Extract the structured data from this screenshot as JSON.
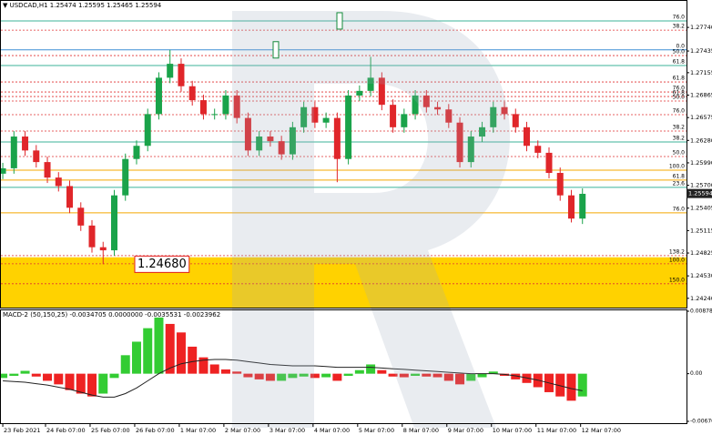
{
  "chart_data": [
    {
      "type": "candlestick",
      "title": "▼ USDCAD,H1  1.25474 1.25595 1.25465 1.25594",
      "xlim": [
        -1.5,
        368
      ],
      "ylim": [
        1.2412,
        1.28
      ],
      "yticks": [
        {
          "value": 1.2774,
          "label": "1.27740"
        },
        1.27435,
        1.27155,
        1.26865,
        1.26575,
        {
          "value": 1.2628,
          "label": "1.26280"
        },
        {
          "value": 1.2599,
          "label": "1.25990"
        },
        {
          "value": 1.257,
          "label": "1.25700"
        },
        1.25405,
        1.25115,
        1.24825,
        {
          "value": 1.2453,
          "label": "1.24530"
        },
        {
          "value": 1.2424,
          "label": "1.24240"
        }
      ],
      "up_color": "#1aa34a",
      "down_color": "#e0262a",
      "x": [
        0,
        6,
        12,
        18,
        24,
        30,
        36,
        42,
        48,
        54,
        60,
        66,
        72,
        78,
        84,
        90,
        96,
        102,
        108,
        114,
        120,
        126,
        132,
        138,
        144,
        150,
        156,
        162,
        168,
        174,
        180,
        186,
        192,
        198,
        204,
        210,
        216,
        222,
        228,
        234,
        240,
        246,
        252,
        258,
        264,
        270,
        276,
        282,
        288,
        294,
        300,
        306,
        312
      ],
      "open": [
        1.2585,
        1.2592,
        1.2633,
        1.2615,
        1.26,
        1.258,
        1.2569,
        1.2541,
        1.2518,
        1.249,
        1.2486,
        1.2557,
        1.2604,
        1.2621,
        1.2662,
        1.2709,
        1.2727,
        1.2698,
        1.268,
        1.2662,
        1.2662,
        1.2686,
        1.2657,
        1.2615,
        1.2633,
        1.2627,
        1.261,
        1.2645,
        1.2671,
        1.2651,
        1.2657,
        1.2604,
        1.2686,
        1.2692,
        1.2709,
        1.2674,
        1.2645,
        1.2662,
        1.2686,
        1.2671,
        1.2668,
        1.2651,
        1.26,
        1.2633,
        1.2645,
        1.2671,
        1.2662,
        1.2645,
        1.2621,
        1.2612,
        1.2586,
        1.2557,
        1.2527
      ],
      "high": [
        1.2599,
        1.264,
        1.264,
        1.2622,
        1.2607,
        1.2587,
        1.2576,
        1.2548,
        1.2525,
        1.2497,
        1.2564,
        1.2611,
        1.2628,
        1.2669,
        1.2716,
        1.2745,
        1.2734,
        1.2705,
        1.2687,
        1.2669,
        1.2693,
        1.2693,
        1.2664,
        1.264,
        1.264,
        1.2634,
        1.2652,
        1.2678,
        1.2678,
        1.2664,
        1.2664,
        1.2693,
        1.2699,
        1.2736,
        1.2716,
        1.2681,
        1.2669,
        1.2693,
        1.2693,
        1.2678,
        1.2675,
        1.2658,
        1.264,
        1.2652,
        1.2678,
        1.2678,
        1.2669,
        1.2652,
        1.2628,
        1.2619,
        1.2593,
        1.2564,
        1.2566
      ],
      "low": [
        1.2578,
        1.2585,
        1.2608,
        1.2593,
        1.2573,
        1.2562,
        1.2534,
        1.2511,
        1.2483,
        1.2468,
        1.2479,
        1.255,
        1.2597,
        1.2614,
        1.2655,
        1.2702,
        1.2691,
        1.2673,
        1.2655,
        1.2655,
        1.2655,
        1.265,
        1.2608,
        1.2608,
        1.262,
        1.2603,
        1.2603,
        1.2638,
        1.2644,
        1.2644,
        1.2574,
        1.2597,
        1.2679,
        1.2685,
        1.2667,
        1.2638,
        1.2638,
        1.2655,
        1.2664,
        1.2661,
        1.2644,
        1.2593,
        1.2593,
        1.2626,
        1.2638,
        1.2655,
        1.2638,
        1.2614,
        1.2605,
        1.2579,
        1.255,
        1.2522,
        1.252
      ],
      "close": [
        1.2592,
        1.2633,
        1.2615,
        1.26,
        1.258,
        1.2569,
        1.2541,
        1.2518,
        1.249,
        1.2486,
        1.2557,
        1.2604,
        1.2621,
        1.2662,
        1.2709,
        1.2727,
        1.2698,
        1.268,
        1.2662,
        1.2662,
        1.2686,
        1.2657,
        1.2615,
        1.2633,
        1.2627,
        1.261,
        1.2645,
        1.2671,
        1.2651,
        1.2657,
        1.2604,
        1.2686,
        1.2692,
        1.2709,
        1.2674,
        1.2645,
        1.2662,
        1.2686,
        1.2671,
        1.2668,
        1.2651,
        1.26,
        1.2633,
        1.2645,
        1.2671,
        1.2662,
        1.2645,
        1.2621,
        1.2612,
        1.2586,
        1.2557,
        1.2527,
        1.2559
      ],
      "zone": {
        "from": 1.2412,
        "to": 1.2477,
        "color": "#ffd200"
      },
      "levels": [
        {
          "label": "76.0",
          "value": 1.27824,
          "color": "#3cb39a",
          "style": "solid"
        },
        {
          "label": "38.2",
          "value": 1.27705,
          "color": "#e03030",
          "style": "dotted"
        },
        {
          "label": "0.0",
          "value": 1.2745,
          "color": "#3d8fd6",
          "style": "solid"
        },
        {
          "label": "50.0",
          "value": 1.27376,
          "color": "#e03030",
          "style": "dotted"
        },
        {
          "label": "61.8",
          "value": 1.27247,
          "color": "#3cb39a",
          "style": "solid"
        },
        {
          "label": "61.8",
          "value": 1.27035,
          "color": "#e03030",
          "style": "dotted"
        },
        {
          "label": "76.0",
          "value": 1.26906,
          "color": "#e03030",
          "style": "dotted"
        },
        {
          "label": "61.8",
          "value": 1.26847,
          "color": "#e03030",
          "style": "dotted"
        },
        {
          "label": "50.0",
          "value": 1.26789,
          "color": "#e03030",
          "style": "dotted"
        },
        {
          "label": "76.0",
          "value": 1.26613,
          "color": "#e03030",
          "style": "dotted"
        },
        {
          "label": "38.2",
          "value": 1.26401,
          "color": "#e03030",
          "style": "dotted"
        },
        {
          "label": "38.2",
          "value": 1.2626,
          "color": "#3cb39a",
          "style": "solid"
        },
        {
          "label": "50.0",
          "value": 1.26072,
          "color": "#e03030",
          "style": "dotted"
        },
        {
          "label": "100.0",
          "value": 1.25896,
          "color": "#f5a800",
          "style": "solid"
        },
        {
          "label": "61.8",
          "value": 1.25767,
          "color": "#f5a800",
          "style": "solid"
        },
        {
          "label": "23.6",
          "value": 1.25673,
          "color": "#3cb39a",
          "style": "solid"
        },
        {
          "label": "76.0",
          "value": 1.25344,
          "color": "#f5a800",
          "style": "solid"
        },
        {
          "label": "138.2",
          "value": 1.24792,
          "color": "#e03030",
          "style": "dotted"
        },
        {
          "label": "100.0",
          "value": 1.24686,
          "color": "#e03030",
          "style": "dotted"
        },
        {
          "label": "150.0",
          "value": 1.24428,
          "color": "#e03030",
          "style": "dotted"
        }
      ],
      "targets": [
        {
          "value": 1.27824
        },
        {
          "value": 1.2745
        },
        {
          "value": 1.2468,
          "label": "1.24680"
        }
      ],
      "last_price": 1.25594
    },
    {
      "type": "macd",
      "title": "MACD-2 (50,150,25) -0.0034705 0.0000000 -0.0035531 -0.0023962",
      "xlim": [
        -1.5,
        368
      ],
      "ylim": [
        -0.006701,
        0.0087837
      ],
      "yticks": [
        0.0087837,
        {
          "value": 0,
          "label": "0.00"
        },
        -0.006701
      ],
      "xticks": [
        {
          "value": 0,
          "label": "23 Feb 2021"
        },
        {
          "value": 23,
          "label": "24 Feb 07:00"
        },
        {
          "value": 47,
          "label": "25 Feb 07:00"
        },
        {
          "value": 71,
          "label": "26 Feb 07:00"
        },
        {
          "value": 95,
          "label": "1 Mar 07:00"
        },
        {
          "value": 119,
          "label": "2 Mar 07:00"
        },
        {
          "value": 143,
          "label": "3 Mar 07:00"
        },
        {
          "value": 167,
          "label": "4 Mar 07:00"
        },
        {
          "value": 191,
          "label": "5 Mar 07:00"
        },
        {
          "value": 215,
          "label": "8 Mar 07:00"
        },
        {
          "value": 239,
          "label": "9 Mar 07:00"
        },
        {
          "value": 263,
          "label": "10 Mar 07:00"
        },
        {
          "value": 287,
          "label": "11 Mar 07:00"
        },
        {
          "value": 311,
          "label": "12 Mar 07:00"
        }
      ],
      "up_color": "#33cc33",
      "down_color": "#ee2222",
      "signal_color": "#222222",
      "x": [
        0,
        6,
        12,
        18,
        24,
        30,
        36,
        42,
        48,
        54,
        60,
        66,
        72,
        78,
        84,
        90,
        96,
        102,
        108,
        114,
        120,
        126,
        132,
        138,
        144,
        150,
        156,
        162,
        168,
        174,
        180,
        186,
        192,
        198,
        204,
        210,
        216,
        222,
        228,
        234,
        240,
        246,
        252,
        258,
        264,
        270,
        276,
        282,
        288,
        294,
        300,
        306,
        312
      ],
      "values": [
        -0.0006,
        -0.0003,
        0.0004,
        -0.0004,
        -0.001,
        -0.0015,
        -0.0023,
        -0.0028,
        -0.0032,
        -0.0028,
        -0.0006,
        0.0026,
        0.0045,
        0.0064,
        0.0079,
        0.007,
        0.0058,
        0.0038,
        0.0023,
        0.0013,
        0.0006,
        0.0003,
        -0.0005,
        -0.0008,
        -0.001,
        -0.001,
        -0.0006,
        -0.0004,
        -0.0006,
        -0.0005,
        -0.001,
        -0.0003,
        0.0005,
        0.0013,
        0.0005,
        -0.0004,
        -0.0005,
        -0.0003,
        -0.0004,
        -0.0005,
        -0.001,
        -0.0015,
        -0.001,
        -0.0005,
        0.0003,
        -0.0003,
        -0.0008,
        -0.0013,
        -0.0019,
        -0.0026,
        -0.0032,
        -0.0038,
        -0.0032
      ],
      "signal": [
        -0.001,
        -0.0011,
        -0.0012,
        -0.0014,
        -0.0016,
        -0.0019,
        -0.0022,
        -0.0026,
        -0.003,
        -0.0033,
        -0.0033,
        -0.0028,
        -0.002,
        -0.001,
        0,
        0.0008,
        0.0014,
        0.0017,
        0.0019,
        0.002,
        0.002,
        0.0019,
        0.0017,
        0.0015,
        0.0013,
        0.0012,
        0.0011,
        0.0011,
        0.0011,
        0.001,
        0.0009,
        0.0009,
        0.0009,
        0.0009,
        0.0008,
        0.0007,
        0.0006,
        0.0005,
        0.0004,
        0.0003,
        0.0002,
        0.0001,
        0,
        0,
        0,
        -0.0001,
        -0.0003,
        -0.0006,
        -0.0009,
        -0.0013,
        -0.0017,
        -0.0021,
        -0.0024
      ]
    }
  ]
}
